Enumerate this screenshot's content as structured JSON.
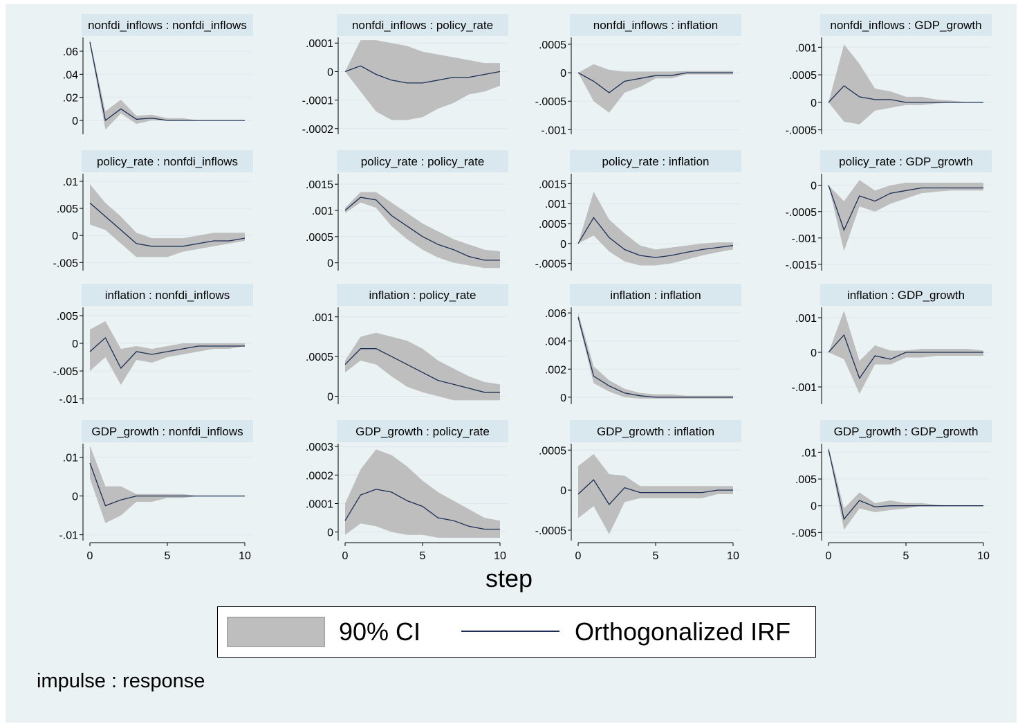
{
  "chart_data": {
    "type": "line",
    "x": [
      0,
      1,
      2,
      3,
      4,
      5,
      6,
      7,
      8,
      9,
      10
    ],
    "xlabel": "step",
    "xticks": [
      0,
      5,
      10
    ],
    "note": "impulse : response",
    "legend": {
      "ci_label": "90% CI",
      "irf_label": "Orthogonalized IRF"
    },
    "colors": {
      "band": "#bebebe",
      "line": "#1a2e54",
      "background": "#eaf2f3",
      "title_bg": "#d9e8ee"
    },
    "panels": [
      {
        "title": "nonfdi_inflows : nonfdi_inflows",
        "ylim": [
          -0.012,
          0.072
        ],
        "yticks": [
          {
            "v": 0.06,
            "l": ".06"
          },
          {
            "v": 0.04,
            "l": ".04"
          },
          {
            "v": 0.02,
            "l": ".02"
          },
          {
            "v": 0,
            "l": "0"
          }
        ],
        "irf": [
          0.068,
          0.0,
          0.01,
          0.001,
          0.002,
          0.0,
          0.0,
          0.0,
          0.0,
          0.0,
          0.0
        ],
        "lower": [
          0.066,
          -0.008,
          0.006,
          -0.003,
          0.0,
          0.0,
          0.0,
          0.0,
          0.0,
          0.0,
          0.0
        ],
        "upper": [
          0.07,
          0.008,
          0.018,
          0.004,
          0.005,
          0.002,
          0.002,
          0.0,
          0.0,
          0.0,
          0.0
        ]
      },
      {
        "title": "nonfdi_inflows : policy_rate",
        "ylim": [
          -0.00022,
          0.00012
        ],
        "yticks": [
          {
            "v": 0.0001,
            "l": ".0001"
          },
          {
            "v": 0,
            "l": "0"
          },
          {
            "v": -0.0001,
            "l": "-.0001"
          },
          {
            "v": -0.0002,
            "l": "-.0002"
          }
        ],
        "irf": [
          0,
          2e-05,
          -1e-05,
          -3e-05,
          -4e-05,
          -4e-05,
          -3e-05,
          -2e-05,
          -2e-05,
          -1e-05,
          0
        ],
        "lower": [
          0,
          -7e-05,
          -0.00014,
          -0.00017,
          -0.00017,
          -0.00016,
          -0.00013,
          -0.00011,
          -8e-05,
          -7e-05,
          -5e-05
        ],
        "upper": [
          0,
          0.00011,
          0.00011,
          0.0001,
          9e-05,
          7e-05,
          6e-05,
          5e-05,
          4e-05,
          3e-05,
          3e-05
        ]
      },
      {
        "title": "nonfdi_inflows : inflation",
        "ylim": [
          -0.00108,
          0.00062
        ],
        "yticks": [
          {
            "v": 0.0005,
            "l": ".0005"
          },
          {
            "v": 0,
            "l": "0"
          },
          {
            "v": -0.0005,
            "l": "-.0005"
          },
          {
            "v": -0.001,
            "l": "-.001"
          }
        ],
        "irf": [
          0,
          -0.00015,
          -0.00035,
          -0.00015,
          -0.0001,
          -5e-05,
          -5e-05,
          0,
          0,
          0,
          0
        ],
        "lower": [
          0,
          -0.0005,
          -0.0007,
          -0.00035,
          -0.00025,
          -0.0001,
          -0.0001,
          -3e-05,
          -3e-05,
          -3e-05,
          -3e-05
        ],
        "upper": [
          0,
          0.00015,
          5e-05,
          2e-05,
          2e-05,
          2e-05,
          2e-05,
          3e-05,
          3e-05,
          3e-05,
          3e-05
        ]
      },
      {
        "title": "nonfdi_inflows : GDP_growth",
        "ylim": [
          -0.00058,
          0.00118
        ],
        "yticks": [
          {
            "v": 0.001,
            "l": ".001"
          },
          {
            "v": 0.0005,
            "l": ".0005"
          },
          {
            "v": 0,
            "l": "0"
          },
          {
            "v": -0.0005,
            "l": "-.0005"
          }
        ],
        "irf": [
          0,
          0.0003,
          0.0001,
          5e-05,
          5e-05,
          0,
          0,
          0,
          0,
          0,
          0
        ],
        "lower": [
          0,
          -0.00035,
          -0.0004,
          -0.00015,
          -0.0001,
          -5e-05,
          -5e-05,
          -2e-05,
          0,
          0,
          0
        ],
        "upper": [
          0,
          0.00105,
          0.0007,
          0.00025,
          0.0002,
          0.0001,
          0.0001,
          5e-05,
          3e-05,
          0,
          0
        ]
      },
      {
        "title": "policy_rate : nonfdi_inflows",
        "ylim": [
          -0.0065,
          0.0114
        ],
        "yticks": [
          {
            "v": 0.01,
            "l": ".01"
          },
          {
            "v": 0.005,
            "l": ".005"
          },
          {
            "v": 0,
            "l": "0"
          },
          {
            "v": -0.005,
            "l": "-.005"
          }
        ],
        "irf": [
          0.006,
          0.0035,
          0.001,
          -0.0015,
          -0.002,
          -0.002,
          -0.002,
          -0.0015,
          -0.001,
          -0.001,
          -0.0005
        ],
        "lower": [
          0.002,
          0.001,
          -0.0015,
          -0.004,
          -0.004,
          -0.004,
          -0.003,
          -0.0025,
          -0.002,
          -0.0015,
          -0.001
        ],
        "upper": [
          0.0095,
          0.006,
          0.0035,
          0.0005,
          -0.0005,
          -0.0005,
          -0.0005,
          0,
          0.0005,
          0.0005,
          0.0005
        ]
      },
      {
        "title": "policy_rate : policy_rate",
        "ylim": [
          -0.00015,
          0.0017
        ],
        "yticks": [
          {
            "v": 0.0015,
            "l": ".0015"
          },
          {
            "v": 0.001,
            "l": ".001"
          },
          {
            "v": 0.0005,
            "l": ".0005"
          },
          {
            "v": 0,
            "l": "0"
          }
        ],
        "irf": [
          0.001,
          0.00125,
          0.0012,
          0.0009,
          0.0007,
          0.0005,
          0.00035,
          0.00025,
          0.00012,
          5e-05,
          5e-05
        ],
        "lower": [
          0.00095,
          0.00115,
          0.00105,
          0.0007,
          0.00045,
          0.00025,
          0.0001,
          0,
          -5e-05,
          -0.0001,
          -0.0001
        ],
        "upper": [
          0.00105,
          0.00135,
          0.00135,
          0.00115,
          0.00095,
          0.00075,
          0.0006,
          0.00045,
          0.00035,
          0.00025,
          0.00022
        ]
      },
      {
        "title": "policy_rate : inflation",
        "ylim": [
          -0.00068,
          0.00175
        ],
        "yticks": [
          {
            "v": 0.0015,
            "l": ".0015"
          },
          {
            "v": 0.001,
            "l": ".001"
          },
          {
            "v": 0.0005,
            "l": ".0005"
          },
          {
            "v": 0,
            "l": "0"
          },
          {
            "v": -0.0005,
            "l": "-.0005"
          }
        ],
        "irf": [
          0,
          0.00065,
          0.00015,
          -0.00015,
          -0.0003,
          -0.00035,
          -0.0003,
          -0.00022,
          -0.00015,
          -0.0001,
          -5e-05
        ],
        "lower": [
          0,
          0.0002,
          -0.0002,
          -0.00045,
          -0.00055,
          -0.00055,
          -0.0005,
          -0.0004,
          -0.0003,
          -0.00022,
          -0.00015
        ],
        "upper": [
          0,
          0.0013,
          0.0006,
          0.00025,
          -5e-05,
          -0.00015,
          -0.0001,
          -5e-05,
          0,
          3e-05,
          3e-05
        ]
      },
      {
        "title": "policy_rate : GDP_growth",
        "ylim": [
          -0.00162,
          0.00022
        ],
        "yticks": [
          {
            "v": 0,
            "l": "0"
          },
          {
            "v": -0.0005,
            "l": "-.0005"
          },
          {
            "v": -0.001,
            "l": "-.001"
          },
          {
            "v": -0.0015,
            "l": "-.0015"
          }
        ],
        "irf": [
          0,
          -0.00085,
          -0.0002,
          -0.0003,
          -0.00015,
          -0.0001,
          -5e-05,
          -5e-05,
          -5e-05,
          -5e-05,
          -5e-05
        ],
        "lower": [
          0,
          -0.00125,
          -0.0004,
          -0.0005,
          -0.00035,
          -0.00025,
          -0.00015,
          -0.00012,
          -0.0001,
          -0.0001,
          -0.0001
        ],
        "upper": [
          0,
          -0.0003,
          0.0001,
          -0.0001,
          0,
          5e-05,
          5e-05,
          5e-05,
          5e-05,
          5e-05,
          5e-05
        ]
      },
      {
        "title": "inflation : nonfdi_inflows",
        "ylim": [
          -0.011,
          0.0065
        ],
        "yticks": [
          {
            "v": 0.005,
            "l": ".005"
          },
          {
            "v": 0,
            "l": "0"
          },
          {
            "v": -0.005,
            "l": "-.005"
          },
          {
            "v": -0.01,
            "l": "-.01"
          }
        ],
        "irf": [
          -0.0015,
          0.001,
          -0.0045,
          -0.0015,
          -0.002,
          -0.0015,
          -0.001,
          -0.0005,
          -0.0005,
          -0.0005,
          -0.0005
        ],
        "lower": [
          -0.005,
          -0.0025,
          -0.0075,
          -0.003,
          -0.0035,
          -0.0025,
          -0.002,
          -0.0015,
          -0.001,
          -0.001,
          -0.0005
        ],
        "upper": [
          0.0025,
          0.004,
          -0.001,
          -0.0005,
          -0.001,
          -0.0005,
          0,
          0,
          0,
          0,
          0
        ]
      },
      {
        "title": "inflation : policy_rate",
        "ylim": [
          -0.0001,
          0.00112
        ],
        "yticks": [
          {
            "v": 0.001,
            "l": ".001"
          },
          {
            "v": 0.0005,
            "l": ".0005"
          },
          {
            "v": 0,
            "l": "0"
          }
        ],
        "irf": [
          0.0004,
          0.0006,
          0.0006,
          0.0005,
          0.0004,
          0.0003,
          0.0002,
          0.00015,
          0.0001,
          5e-05,
          5e-05
        ],
        "lower": [
          0.0003,
          0.00045,
          0.0004,
          0.00025,
          0.00012,
          5e-05,
          0,
          -5e-05,
          -5e-05,
          -5e-05,
          -5e-05
        ],
        "upper": [
          0.00045,
          0.00075,
          0.0008,
          0.00075,
          0.0007,
          0.0006,
          0.00045,
          0.00035,
          0.00025,
          0.00018,
          0.00015
        ]
      },
      {
        "title": "inflation : inflation",
        "ylim": [
          -0.0005,
          0.0064
        ],
        "yticks": [
          {
            "v": 0.006,
            "l": ".006"
          },
          {
            "v": 0.004,
            "l": ".004"
          },
          {
            "v": 0.002,
            "l": ".002"
          },
          {
            "v": 0,
            "l": "0"
          }
        ],
        "irf": [
          0.0057,
          0.0015,
          0.0008,
          0.0003,
          0.0001,
          0,
          0,
          0,
          0,
          0,
          0
        ],
        "lower": [
          0.0055,
          0.001,
          0.0004,
          0,
          -0.0001,
          -0.0001,
          -0.0001,
          -0.0001,
          -0.0001,
          -0.0001,
          -0.0001
        ],
        "upper": [
          0.006,
          0.0022,
          0.0012,
          0.0006,
          0.0003,
          0.0002,
          0.0002,
          0.0001,
          0.0001,
          0.0001,
          0.0001
        ]
      },
      {
        "title": "inflation : GDP_growth",
        "ylim": [
          -0.0015,
          0.0013
        ],
        "yticks": [
          {
            "v": 0.001,
            "l": ".001"
          },
          {
            "v": 0,
            "l": "0"
          },
          {
            "v": -0.001,
            "l": "-.001"
          }
        ],
        "irf": [
          0,
          0.0005,
          -0.00075,
          -0.0001,
          -0.0002,
          0,
          0,
          0,
          0,
          0,
          0
        ],
        "lower": [
          0,
          -0.0002,
          -0.0012,
          -0.00035,
          -0.00035,
          -0.00015,
          -0.00015,
          -0.0001,
          -0.0001,
          -0.0001,
          -0.0001
        ],
        "upper": [
          0,
          0.0012,
          -0.00025,
          0.0002,
          5e-05,
          5e-05,
          0.0001,
          0.0001,
          0.0001,
          0.0001,
          5e-05
        ]
      },
      {
        "title": "GDP_growth : nonfdi_inflows",
        "ylim": [
          -0.0115,
          0.0135
        ],
        "yticks": [
          {
            "v": 0.01,
            "l": ".01"
          },
          {
            "v": 0,
            "l": "0"
          },
          {
            "v": -0.01,
            "l": "-.01"
          }
        ],
        "irf": [
          0.0085,
          -0.0025,
          -0.001,
          0,
          0,
          0,
          0,
          0,
          0,
          0,
          0
        ],
        "lower": [
          0.0045,
          -0.007,
          -0.005,
          -0.0015,
          -0.0015,
          -0.0005,
          -0.0005,
          0,
          0,
          0,
          0
        ],
        "upper": [
          0.013,
          0.0025,
          0.0025,
          0.0005,
          0.0005,
          0.0005,
          0.0005,
          0,
          0,
          0,
          0
        ]
      },
      {
        "title": "GDP_growth : policy_rate",
        "ylim": [
          -3e-05,
          0.00031
        ],
        "yticks": [
          {
            "v": 0.0003,
            "l": ".0003"
          },
          {
            "v": 0.0002,
            "l": ".0002"
          },
          {
            "v": 0.0001,
            "l": ".0001"
          },
          {
            "v": 0,
            "l": "0"
          }
        ],
        "irf": [
          4e-05,
          0.00013,
          0.00015,
          0.00014,
          0.00011,
          9e-05,
          5e-05,
          4e-05,
          2e-05,
          1e-05,
          1e-05
        ],
        "lower": [
          -1e-05,
          3e-05,
          2e-05,
          0,
          -1e-05,
          -1e-05,
          -2e-05,
          -2e-05,
          -2e-05,
          -2e-05,
          -2e-05
        ],
        "upper": [
          0.0001,
          0.00022,
          0.00029,
          0.00027,
          0.00023,
          0.00018,
          0.00014,
          0.00011,
          8e-05,
          5e-05,
          4e-05
        ]
      },
      {
        "title": "GDP_growth : inflation",
        "ylim": [
          -0.00063,
          0.00058
        ],
        "yticks": [
          {
            "v": 0.0005,
            "l": ".0005"
          },
          {
            "v": 0,
            "l": "0"
          },
          {
            "v": -0.0005,
            "l": "-.0005"
          }
        ],
        "irf": [
          -5e-05,
          0.00013,
          -0.00018,
          3e-05,
          -3e-05,
          -3e-05,
          -3e-05,
          -3e-05,
          -3e-05,
          0,
          0
        ],
        "lower": [
          -0.00035,
          -0.0002,
          -0.00055,
          -0.00015,
          -0.0001,
          -0.0001,
          -0.0001,
          -0.0001,
          -0.0001,
          -5e-05,
          -5e-05
        ],
        "upper": [
          0.0003,
          0.00045,
          0.0002,
          0.00018,
          5e-05,
          5e-05,
          5e-05,
          5e-05,
          5e-05,
          5e-05,
          5e-05
        ]
      },
      {
        "title": "GDP_growth : GDP_growth",
        "ylim": [
          -0.0065,
          0.0116
        ],
        "yticks": [
          {
            "v": 0.01,
            "l": ".01"
          },
          {
            "v": 0.005,
            "l": ".005"
          },
          {
            "v": 0,
            "l": "0"
          },
          {
            "v": -0.005,
            "l": "-.005"
          }
        ],
        "irf": [
          0.0105,
          -0.0025,
          0.001,
          -0.0002,
          0,
          0,
          0,
          0,
          0,
          0,
          0
        ],
        "lower": [
          0.0103,
          -0.0045,
          -0.0005,
          -0.0012,
          -0.0008,
          -0.0005,
          0,
          0,
          0,
          0,
          0
        ],
        "upper": [
          0.011,
          -0.0005,
          0.0025,
          0.0005,
          0.001,
          0.0005,
          0.0005,
          0.0002,
          0,
          0,
          0
        ]
      }
    ]
  }
}
